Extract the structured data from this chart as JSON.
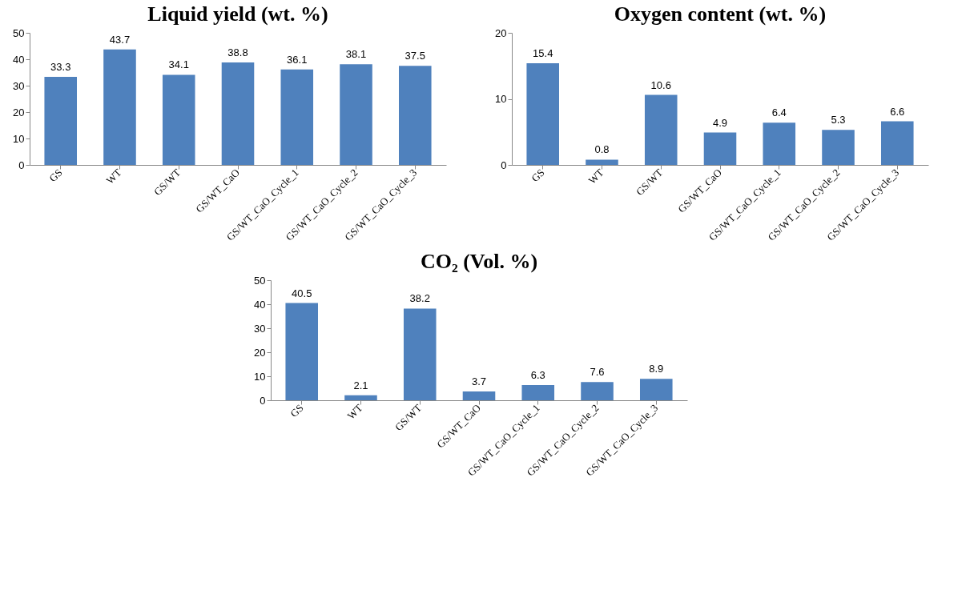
{
  "chart_data": [
    {
      "type": "bar",
      "title": "Liquid yield (wt. %)",
      "categories": [
        "GS",
        "WT",
        "GS/WT",
        "GS/WT_CaO",
        "GS/WT_CaO_Cycle_1",
        "GS/WT_CaO_Cycle_2",
        "GS/WT_CaO_Cycle_3"
      ],
      "values": [
        33.3,
        43.7,
        34.1,
        38.8,
        36.1,
        38.1,
        37.5
      ],
      "color": "#4f81bd",
      "ylim": [
        0,
        50
      ],
      "yticks": [
        0,
        10,
        20,
        30,
        40,
        50
      ],
      "data_labels": true,
      "grid": false
    },
    {
      "type": "bar",
      "title": "Oxygen content (wt. %)",
      "categories": [
        "GS",
        "WT",
        "GS/WT",
        "GS/WT_CaO",
        "GS/WT_CaO_Cycle_1",
        "GS/WT_CaO_Cycle_2",
        "GS/WT_CaO_Cycle_3"
      ],
      "values": [
        15.4,
        0.8,
        10.6,
        4.9,
        6.4,
        5.3,
        6.6
      ],
      "color": "#4f81bd",
      "ylim": [
        0,
        20
      ],
      "yticks": [
        0,
        10,
        20
      ],
      "data_labels": true,
      "grid": false
    },
    {
      "type": "bar",
      "title": "CO₂ (Vol. %)",
      "categories": [
        "GS",
        "WT",
        "GS/WT",
        "GS/WT_CaO",
        "GS/WT_CaO_Cycle_1",
        "GS/WT_CaO_Cycle_2",
        "GS/WT_CaO_Cycle_3"
      ],
      "values": [
        40.5,
        2.1,
        38.2,
        3.7,
        6.3,
        7.6,
        8.9
      ],
      "color": "#4f81bd",
      "ylim": [
        0,
        50
      ],
      "yticks": [
        0,
        10,
        20,
        30,
        40,
        50
      ],
      "data_labels": true,
      "grid": false
    }
  ]
}
